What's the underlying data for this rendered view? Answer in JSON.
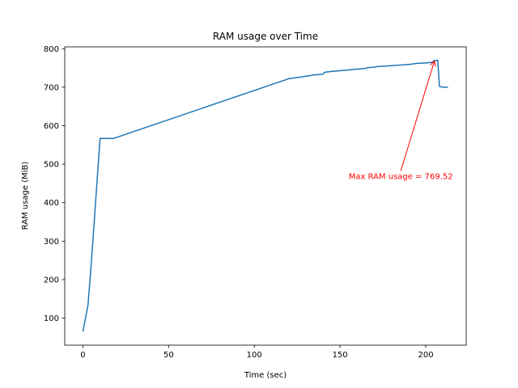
{
  "chart_data": {
    "type": "line",
    "title": "RAM usage over Time",
    "xlabel": "Time (sec)",
    "ylabel": "RAM usage (MiB)",
    "xlim": [
      -10.6,
      223.6
    ],
    "ylim": [
      29.8,
      804.8
    ],
    "xticks": [
      0,
      50,
      100,
      150,
      200
    ],
    "yticks": [
      100,
      200,
      300,
      400,
      500,
      600,
      700,
      800
    ],
    "grid": false,
    "series": [
      {
        "color": "#1f77b4",
        "x": [
          0,
          3,
          5,
          10,
          18,
          120,
          128,
          135,
          140,
          141,
          145,
          155,
          160,
          165,
          166,
          170,
          172,
          180,
          190,
          195,
          200,
          204,
          205,
          207,
          208,
          210,
          213
        ],
        "y": [
          65,
          135,
          250,
          567,
          567,
          722,
          727,
          732,
          734,
          739,
          741,
          745,
          747,
          749,
          751,
          752,
          754,
          756,
          759,
          762,
          763,
          765,
          769.52,
          769.52,
          702,
          700,
          700
        ]
      }
    ],
    "annotations": [
      {
        "text": "Max RAM usage = 769.52",
        "color": "#ff0000",
        "xy": [
          205,
          769.52
        ],
        "xytext": [
          155,
          470
        ]
      }
    ]
  }
}
